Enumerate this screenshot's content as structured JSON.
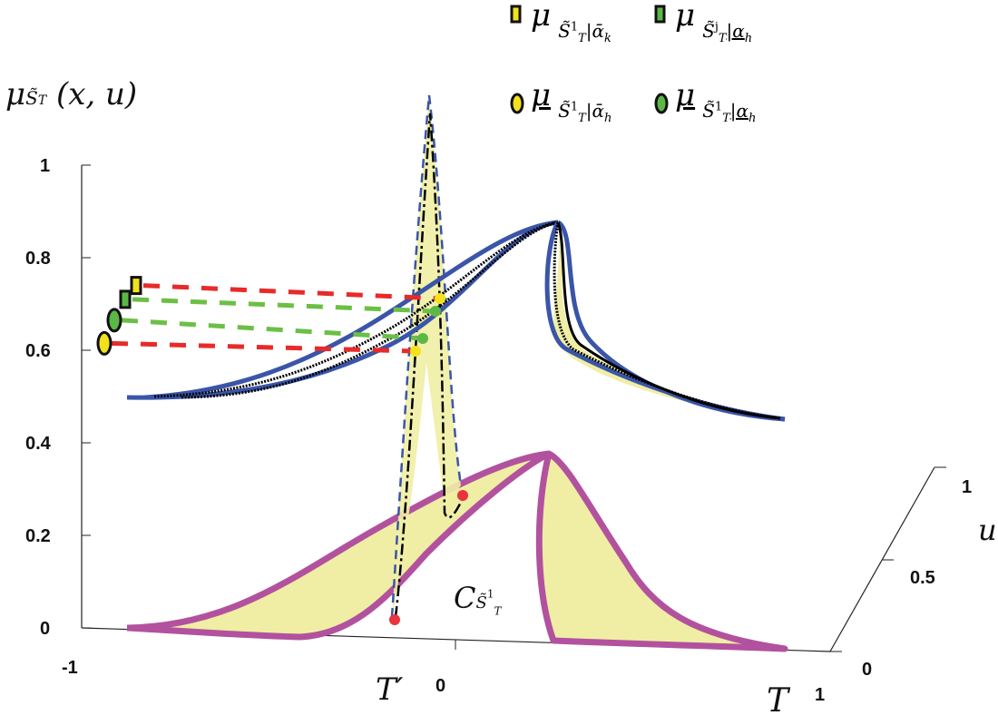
{
  "chart_data": {
    "type": "3d-line",
    "ylabel_parts": {
      "symbol": "μ",
      "sub": "S̃",
      "sub_sub": "T",
      "args": "(x, u)"
    },
    "xlabel": "T",
    "zlabel": "u",
    "x_marker_label": "T′",
    "curve_label": {
      "symbol": "C",
      "sub": "S̃",
      "sup": "1",
      "sub_sub": "T"
    },
    "x_ticks": [
      "-1",
      "0",
      "1"
    ],
    "y_ticks": [
      "0",
      "0.2",
      "0.4",
      "0.6",
      "0.8",
      "1"
    ],
    "z_ticks": [
      "0",
      "0.5",
      "1"
    ],
    "xlim": [
      -1,
      1
    ],
    "ylim": [
      0,
      1
    ],
    "zlim": [
      0,
      1
    ],
    "grid": false,
    "legend_placement": "top-right",
    "legend": [
      {
        "marker": "rectangle",
        "fill": "#f2e21c",
        "decoration": "bar",
        "symbol": "μ",
        "set": "S̃",
        "sup": "1",
        "sub": "T",
        "cond": "|ᾱ",
        "cond_sub": "k"
      },
      {
        "marker": "rectangle",
        "fill": "#5cb845",
        "decoration": "bar",
        "symbol": "μ",
        "set": "S̃",
        "sup": "j",
        "sub": "T",
        "cond": "|α",
        "cond_sub": "h",
        "cond_underline": true
      },
      {
        "marker": "ellipse",
        "fill": "#f2e21c",
        "decoration": "underline",
        "symbol": "μ",
        "set": "S̃",
        "sup": "1",
        "sub": "T",
        "cond": "|ᾱ",
        "cond_sub": "h"
      },
      {
        "marker": "ellipse",
        "fill": "#5cb845",
        "decoration": "underline",
        "symbol": "μ",
        "set": "S̃",
        "sup": "1",
        "sub": "T",
        "cond": "|α",
        "cond_sub": "h",
        "cond_underline": true
      }
    ],
    "markers": [
      {
        "marker": "rectangle",
        "fill": "#f2e21c",
        "line": "#e82a2a",
        "mu": 0.74
      },
      {
        "marker": "rectangle",
        "fill": "#5cb845",
        "line": "#6cbf45",
        "mu": 0.71
      },
      {
        "marker": "ellipse",
        "fill": "#5cb845",
        "line": "#6cbf45",
        "mu": 0.665
      },
      {
        "marker": "ellipse",
        "fill": "#f2e21c",
        "line": "#e82a2a",
        "mu": 0.615
      }
    ],
    "colors": {
      "outline": "#3a55a8",
      "footprint": "#b2529f",
      "fill": "#f0eea4",
      "inner": "#000000",
      "point": "#e8343a"
    }
  }
}
